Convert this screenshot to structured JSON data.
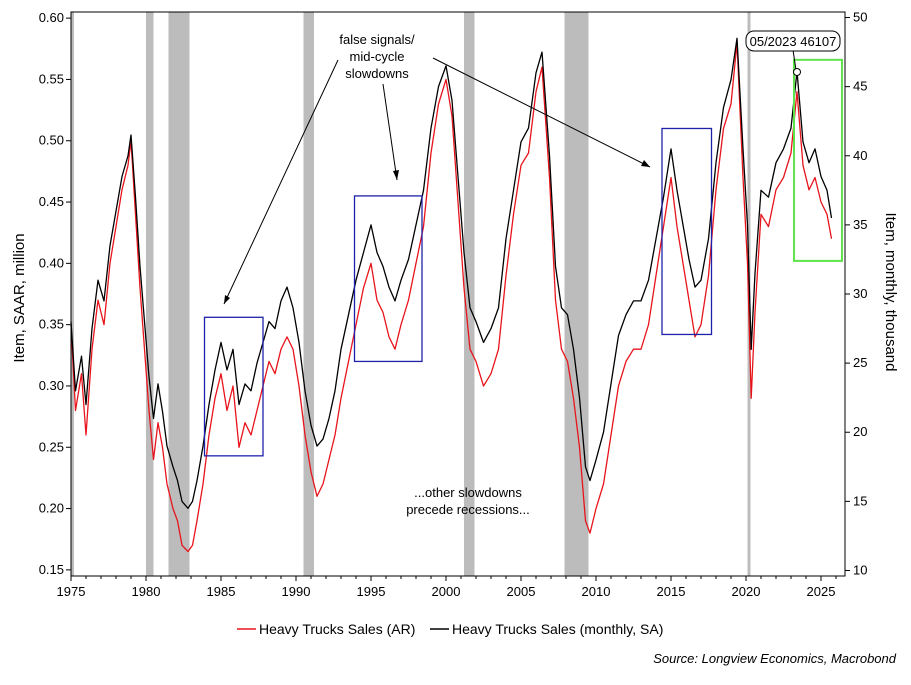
{
  "chart_data": {
    "type": "line",
    "title": "",
    "ylabel_left": "Item, SAAR, million",
    "ylabel_right": "Item, monthly, thousand",
    "ylim_left": [
      0.145,
      0.605
    ],
    "ylim_right": [
      9.6,
      50.4
    ],
    "xlim": [
      1975,
      2026.6
    ],
    "left_ticks": [
      "0.15",
      "0.20",
      "0.25",
      "0.30",
      "0.35",
      "0.40",
      "0.45",
      "0.50",
      "0.55",
      "0.60"
    ],
    "right_ticks": [
      "10",
      "15",
      "20",
      "25",
      "30",
      "35",
      "40",
      "45",
      "50"
    ],
    "x_ticks": [
      "1975",
      "1980",
      "1985",
      "1990",
      "1995",
      "2000",
      "2005",
      "2010",
      "2015",
      "2020",
      "2025"
    ],
    "series": [
      {
        "name": "Heavy Trucks Sales (AR)",
        "color": "#e8141b",
        "axis": "left",
        "points": [
          [
            1975.0,
            0.35
          ],
          [
            1975.3,
            0.28
          ],
          [
            1975.7,
            0.31
          ],
          [
            1976.0,
            0.26
          ],
          [
            1976.4,
            0.33
          ],
          [
            1976.8,
            0.37
          ],
          [
            1977.2,
            0.35
          ],
          [
            1977.6,
            0.4
          ],
          [
            1978.0,
            0.43
          ],
          [
            1978.4,
            0.46
          ],
          [
            1978.8,
            0.48
          ],
          [
            1979.0,
            0.5
          ],
          [
            1979.3,
            0.44
          ],
          [
            1979.6,
            0.38
          ],
          [
            1979.9,
            0.33
          ],
          [
            1980.2,
            0.28
          ],
          [
            1980.5,
            0.24
          ],
          [
            1980.8,
            0.27
          ],
          [
            1981.1,
            0.25
          ],
          [
            1981.4,
            0.22
          ],
          [
            1981.8,
            0.2
          ],
          [
            1982.1,
            0.19
          ],
          [
            1982.4,
            0.17
          ],
          [
            1982.8,
            0.165
          ],
          [
            1983.1,
            0.17
          ],
          [
            1983.4,
            0.19
          ],
          [
            1983.8,
            0.22
          ],
          [
            1984.2,
            0.26
          ],
          [
            1984.6,
            0.29
          ],
          [
            1985.0,
            0.31
          ],
          [
            1985.4,
            0.28
          ],
          [
            1985.8,
            0.3
          ],
          [
            1986.2,
            0.25
          ],
          [
            1986.6,
            0.27
          ],
          [
            1987.0,
            0.26
          ],
          [
            1987.4,
            0.28
          ],
          [
            1987.8,
            0.3
          ],
          [
            1988.2,
            0.32
          ],
          [
            1988.6,
            0.31
          ],
          [
            1989.0,
            0.33
          ],
          [
            1989.4,
            0.34
          ],
          [
            1989.8,
            0.33
          ],
          [
            1990.2,
            0.3
          ],
          [
            1990.6,
            0.26
          ],
          [
            1991.0,
            0.23
          ],
          [
            1991.4,
            0.21
          ],
          [
            1991.8,
            0.22
          ],
          [
            1992.2,
            0.24
          ],
          [
            1992.6,
            0.26
          ],
          [
            1993.0,
            0.29
          ],
          [
            1993.5,
            0.32
          ],
          [
            1994.0,
            0.35
          ],
          [
            1994.5,
            0.38
          ],
          [
            1995.0,
            0.4
          ],
          [
            1995.4,
            0.37
          ],
          [
            1995.8,
            0.36
          ],
          [
            1996.2,
            0.34
          ],
          [
            1996.6,
            0.33
          ],
          [
            1997.0,
            0.35
          ],
          [
            1997.5,
            0.37
          ],
          [
            1998.0,
            0.4
          ],
          [
            1998.5,
            0.43
          ],
          [
            1999.0,
            0.49
          ],
          [
            1999.5,
            0.53
          ],
          [
            2000.0,
            0.55
          ],
          [
            2000.4,
            0.52
          ],
          [
            2000.8,
            0.45
          ],
          [
            2001.2,
            0.38
          ],
          [
            2001.6,
            0.33
          ],
          [
            2002.0,
            0.32
          ],
          [
            2002.5,
            0.3
          ],
          [
            2003.0,
            0.31
          ],
          [
            2003.5,
            0.33
          ],
          [
            2004.0,
            0.39
          ],
          [
            2004.5,
            0.44
          ],
          [
            2005.0,
            0.48
          ],
          [
            2005.5,
            0.49
          ],
          [
            2006.0,
            0.54
          ],
          [
            2006.4,
            0.56
          ],
          [
            2006.9,
            0.47
          ],
          [
            2007.3,
            0.37
          ],
          [
            2007.7,
            0.33
          ],
          [
            2008.1,
            0.32
          ],
          [
            2008.5,
            0.29
          ],
          [
            2008.9,
            0.25
          ],
          [
            2009.3,
            0.19
          ],
          [
            2009.6,
            0.18
          ],
          [
            2010.0,
            0.2
          ],
          [
            2010.5,
            0.22
          ],
          [
            2011.0,
            0.26
          ],
          [
            2011.5,
            0.3
          ],
          [
            2012.0,
            0.32
          ],
          [
            2012.5,
            0.33
          ],
          [
            2013.0,
            0.33
          ],
          [
            2013.5,
            0.35
          ],
          [
            2014.0,
            0.39
          ],
          [
            2014.5,
            0.43
          ],
          [
            2015.0,
            0.47
          ],
          [
            2015.4,
            0.43
          ],
          [
            2015.8,
            0.4
          ],
          [
            2016.2,
            0.37
          ],
          [
            2016.6,
            0.34
          ],
          [
            2017.0,
            0.35
          ],
          [
            2017.5,
            0.39
          ],
          [
            2018.0,
            0.46
          ],
          [
            2018.5,
            0.51
          ],
          [
            2019.0,
            0.53
          ],
          [
            2019.4,
            0.58
          ],
          [
            2019.8,
            0.47
          ],
          [
            2020.1,
            0.4
          ],
          [
            2020.35,
            0.29
          ],
          [
            2020.6,
            0.36
          ],
          [
            2021.0,
            0.44
          ],
          [
            2021.5,
            0.43
          ],
          [
            2022.0,
            0.46
          ],
          [
            2022.5,
            0.47
          ],
          [
            2023.0,
            0.49
          ],
          [
            2023.4,
            0.54
          ],
          [
            2023.8,
            0.48
          ],
          [
            2024.2,
            0.46
          ],
          [
            2024.6,
            0.47
          ],
          [
            2025.0,
            0.45
          ],
          [
            2025.4,
            0.44
          ],
          [
            2025.7,
            0.42
          ]
        ]
      },
      {
        "name": "Heavy Trucks Sales (monthly, SA)",
        "color": "#000000",
        "axis": "right",
        "points": [
          [
            1975.0,
            28.0
          ],
          [
            1975.3,
            23.0
          ],
          [
            1975.7,
            25.5
          ],
          [
            1976.0,
            22.0
          ],
          [
            1976.4,
            27.5
          ],
          [
            1976.8,
            31.0
          ],
          [
            1977.2,
            29.5
          ],
          [
            1977.6,
            33.5
          ],
          [
            1978.0,
            36.0
          ],
          [
            1978.4,
            38.5
          ],
          [
            1978.8,
            40.0
          ],
          [
            1979.0,
            41.5
          ],
          [
            1979.3,
            37.0
          ],
          [
            1979.6,
            32.0
          ],
          [
            1979.9,
            28.0
          ],
          [
            1980.2,
            24.0
          ],
          [
            1980.5,
            21.0
          ],
          [
            1980.8,
            23.5
          ],
          [
            1981.1,
            21.5
          ],
          [
            1981.4,
            19.0
          ],
          [
            1981.8,
            17.5
          ],
          [
            1982.1,
            16.5
          ],
          [
            1982.4,
            15.0
          ],
          [
            1982.8,
            14.5
          ],
          [
            1983.1,
            15.0
          ],
          [
            1983.4,
            16.5
          ],
          [
            1983.8,
            19.0
          ],
          [
            1984.2,
            22.0
          ],
          [
            1984.6,
            24.5
          ],
          [
            1985.0,
            26.5
          ],
          [
            1985.4,
            24.5
          ],
          [
            1985.8,
            26.0
          ],
          [
            1986.2,
            22.0
          ],
          [
            1986.6,
            23.5
          ],
          [
            1987.0,
            23.0
          ],
          [
            1987.4,
            25.0
          ],
          [
            1987.8,
            26.5
          ],
          [
            1988.2,
            28.0
          ],
          [
            1988.6,
            27.5
          ],
          [
            1989.0,
            29.5
          ],
          [
            1989.4,
            30.5
          ],
          [
            1989.8,
            29.0
          ],
          [
            1990.2,
            26.5
          ],
          [
            1990.6,
            23.0
          ],
          [
            1991.0,
            20.5
          ],
          [
            1991.4,
            19.0
          ],
          [
            1991.8,
            19.5
          ],
          [
            1992.2,
            21.0
          ],
          [
            1992.6,
            23.0
          ],
          [
            1993.0,
            26.0
          ],
          [
            1993.5,
            28.5
          ],
          [
            1994.0,
            31.0
          ],
          [
            1994.5,
            33.0
          ],
          [
            1995.0,
            35.0
          ],
          [
            1995.4,
            33.0
          ],
          [
            1995.8,
            32.0
          ],
          [
            1996.2,
            30.5
          ],
          [
            1996.6,
            29.5
          ],
          [
            1997.0,
            31.0
          ],
          [
            1997.5,
            32.5
          ],
          [
            1998.0,
            35.0
          ],
          [
            1998.5,
            37.5
          ],
          [
            1999.0,
            42.0
          ],
          [
            1999.5,
            45.0
          ],
          [
            2000.0,
            46.5
          ],
          [
            2000.4,
            44.0
          ],
          [
            2000.8,
            38.5
          ],
          [
            2001.2,
            33.0
          ],
          [
            2001.6,
            29.0
          ],
          [
            2002.0,
            28.0
          ],
          [
            2002.5,
            26.5
          ],
          [
            2003.0,
            27.5
          ],
          [
            2003.5,
            29.0
          ],
          [
            2004.0,
            34.0
          ],
          [
            2004.5,
            37.5
          ],
          [
            2005.0,
            41.0
          ],
          [
            2005.5,
            42.0
          ],
          [
            2006.0,
            46.0
          ],
          [
            2006.4,
            47.5
          ],
          [
            2006.9,
            40.0
          ],
          [
            2007.3,
            32.0
          ],
          [
            2007.7,
            29.0
          ],
          [
            2008.1,
            28.5
          ],
          [
            2008.5,
            26.0
          ],
          [
            2008.9,
            22.5
          ],
          [
            2009.3,
            17.5
          ],
          [
            2009.6,
            16.5
          ],
          [
            2010.0,
            18.0
          ],
          [
            2010.5,
            20.0
          ],
          [
            2011.0,
            23.5
          ],
          [
            2011.5,
            27.0
          ],
          [
            2012.0,
            28.5
          ],
          [
            2012.5,
            29.5
          ],
          [
            2013.0,
            29.5
          ],
          [
            2013.5,
            31.0
          ],
          [
            2014.0,
            34.0
          ],
          [
            2014.5,
            37.0
          ],
          [
            2015.0,
            40.5
          ],
          [
            2015.4,
            37.5
          ],
          [
            2015.8,
            35.0
          ],
          [
            2016.2,
            32.5
          ],
          [
            2016.6,
            30.5
          ],
          [
            2017.0,
            31.0
          ],
          [
            2017.5,
            34.0
          ],
          [
            2018.0,
            39.5
          ],
          [
            2018.5,
            43.5
          ],
          [
            2019.0,
            45.5
          ],
          [
            2019.4,
            48.5
          ],
          [
            2019.8,
            40.5
          ],
          [
            2020.1,
            35.0
          ],
          [
            2020.35,
            26.0
          ],
          [
            2020.6,
            31.5
          ],
          [
            2021.0,
            37.5
          ],
          [
            2021.5,
            37.0
          ],
          [
            2022.0,
            39.5
          ],
          [
            2022.5,
            40.5
          ],
          [
            2023.0,
            42.0
          ],
          [
            2023.4,
            46.1
          ],
          [
            2023.8,
            41.0
          ],
          [
            2024.2,
            39.5
          ],
          [
            2024.6,
            40.5
          ],
          [
            2025.0,
            38.5
          ],
          [
            2025.4,
            37.5
          ],
          [
            2025.7,
            35.5
          ]
        ]
      }
    ],
    "recessions": [
      [
        1975.0,
        1975.2
      ],
      [
        1980.0,
        1980.5
      ],
      [
        1981.5,
        1982.9
      ],
      [
        1990.5,
        1991.2
      ],
      [
        2001.2,
        2001.9
      ],
      [
        2007.9,
        2009.5
      ],
      [
        2020.1,
        2020.3
      ]
    ],
    "boxes": [
      {
        "color": "#1e22a8",
        "x": [
          1983.9,
          1987.8
        ],
        "y": [
          0.243,
          0.356
        ]
      },
      {
        "color": "#1e22a8",
        "x": [
          1993.9,
          1998.4
        ],
        "y": [
          0.32,
          0.455
        ]
      },
      {
        "color": "#1e22a8",
        "x": [
          2014.4,
          2017.7
        ],
        "y": [
          0.342,
          0.51
        ]
      },
      {
        "color": "#5ee34a",
        "x": [
          2023.2,
          2026.4
        ],
        "y": [
          0.402,
          0.566
        ]
      }
    ],
    "annotations": {
      "false_signals": [
        "false signals/",
        "mid-cycle",
        "slowdowns"
      ],
      "other_slowdowns": [
        "...other slowdowns",
        "precede recessions..."
      ],
      "callout": "05/2023 46107"
    },
    "legend_placement": "bottom-center",
    "source": "Source: Longview Economics, Macrobond"
  }
}
